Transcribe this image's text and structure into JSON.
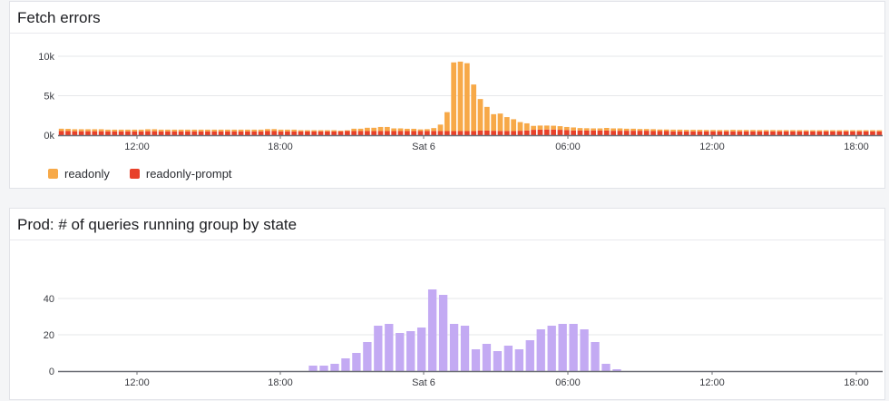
{
  "panels": [
    {
      "title": "Fetch errors"
    },
    {
      "title": "Prod: # of queries running group by state"
    }
  ],
  "chart_data": [
    {
      "type": "bar",
      "stacked": true,
      "title": "Fetch errors",
      "x_tick_labels": [
        "12:00",
        "18:00",
        "Sat 6",
        "06:00",
        "12:00",
        "18:00"
      ],
      "y_tick_labels": [
        "0k",
        "5k",
        "10k"
      ],
      "ylim": [
        0,
        10000
      ],
      "grid": true,
      "legend_position": "bottom-left",
      "series": [
        {
          "name": "readonly-prompt",
          "color": "#e8412a",
          "values": [
            520,
            520,
            500,
            500,
            500,
            500,
            500,
            480,
            480,
            480,
            480,
            480,
            480,
            500,
            500,
            480,
            480,
            480,
            480,
            480,
            480,
            480,
            480,
            480,
            480,
            480,
            480,
            480,
            480,
            480,
            480,
            520,
            520,
            480,
            480,
            480,
            480,
            480,
            480,
            480,
            480,
            480,
            480,
            520,
            520,
            520,
            520,
            520,
            520,
            520,
            520,
            520,
            520,
            520,
            520,
            540,
            540,
            520,
            520,
            520,
            520,
            520,
            520,
            580,
            580,
            560,
            540,
            540,
            520,
            560,
            600,
            680,
            700,
            720,
            720,
            680,
            640,
            600,
            600,
            580,
            600,
            600,
            580,
            560,
            560,
            560,
            560,
            560,
            560,
            520,
            520,
            520,
            480,
            480,
            480,
            480,
            480,
            480,
            480,
            480,
            480,
            480,
            480,
            480,
            480,
            480,
            480,
            480,
            480,
            480,
            480,
            480,
            480,
            480,
            480,
            480,
            480,
            480,
            480,
            480,
            480,
            480,
            480,
            480
          ]
        },
        {
          "name": "readonly",
          "color": "#f7a948",
          "values": [
            300,
            280,
            250,
            250,
            250,
            250,
            250,
            220,
            220,
            220,
            220,
            220,
            220,
            250,
            250,
            220,
            220,
            220,
            220,
            220,
            220,
            220,
            220,
            220,
            220,
            220,
            220,
            220,
            220,
            220,
            220,
            250,
            250,
            220,
            220,
            220,
            150,
            150,
            150,
            150,
            150,
            150,
            100,
            100,
            300,
            300,
            420,
            420,
            520,
            520,
            340,
            340,
            290,
            290,
            210,
            220,
            360,
            820,
            2400,
            8700,
            8800,
            8600,
            5900,
            4000,
            3000,
            2100,
            2200,
            1750,
            1500,
            1100,
            900,
            500,
            520,
            500,
            480,
            460,
            400,
            380,
            300,
            300,
            260,
            260,
            340,
            300,
            300,
            260,
            260,
            220,
            220,
            240,
            200,
            200,
            220,
            220,
            200,
            200,
            200,
            180,
            180,
            170,
            170,
            200,
            180,
            180,
            180,
            170,
            170,
            170,
            160,
            160,
            160,
            160,
            150,
            150,
            150,
            150,
            150,
            150,
            150,
            150,
            150,
            150,
            150,
            150
          ]
        }
      ]
    },
    {
      "type": "bar",
      "title": "Prod: # of queries running group by state",
      "x_tick_labels": [
        "12:00",
        "18:00",
        "Sat 6",
        "06:00",
        "12:00",
        "18:00"
      ],
      "y_tick_labels": [
        "0",
        "20",
        "40"
      ],
      "ylim": [
        0,
        50
      ],
      "grid": true,
      "series": [
        {
          "color": "#c3aaf3",
          "values": [
            0,
            0,
            0,
            0,
            0,
            0,
            0,
            0,
            0,
            0,
            0,
            0,
            0,
            0,
            0,
            0,
            0,
            0,
            0,
            0,
            0,
            0,
            0,
            3,
            3,
            4,
            7,
            10,
            16,
            25,
            26,
            21,
            22,
            24,
            45,
            42,
            26,
            25,
            12,
            15,
            11,
            14,
            12,
            17,
            23,
            25,
            26,
            26,
            23,
            16,
            4,
            1,
            0,
            0,
            0,
            0,
            0,
            0,
            0,
            0,
            0,
            0,
            0,
            0,
            0,
            0,
            0,
            0,
            0,
            0,
            0,
            0,
            0,
            0,
            0,
            0
          ]
        }
      ]
    }
  ]
}
